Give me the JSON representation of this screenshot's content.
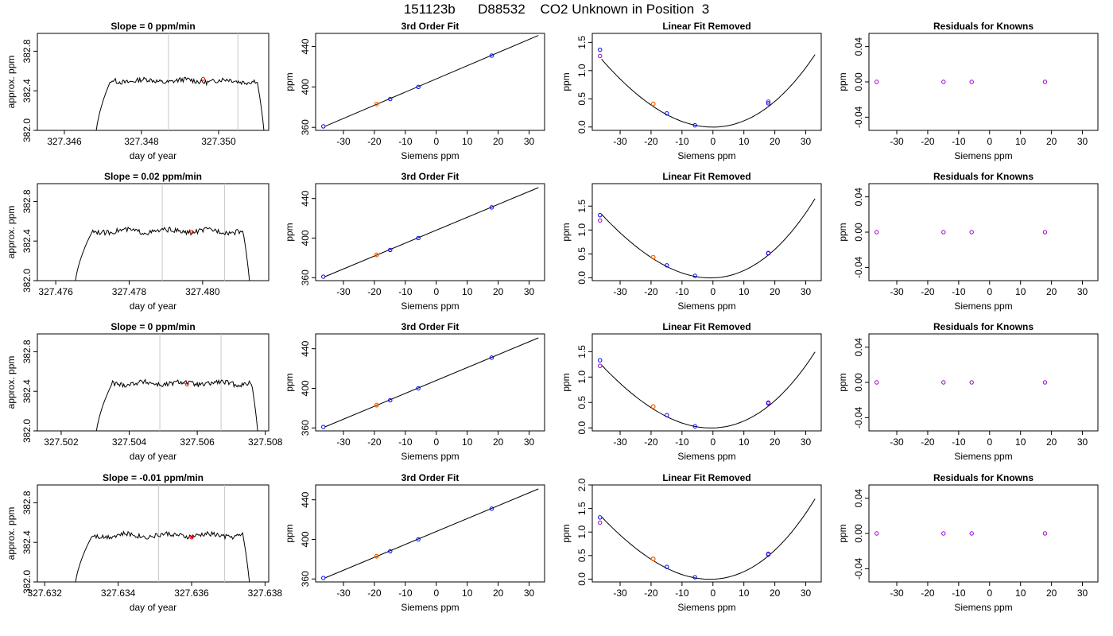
{
  "figure": {
    "title": "151123b      D88532    CO2 Unknown in Position  3",
    "colors": {
      "unknown": "#ff0000",
      "fit_point": "#ff6600",
      "known": "#0000ff",
      "known_alt": "#9900cc",
      "window_lines": "#c8c8c8"
    }
  },
  "chart_data": [
    {
      "row": 1,
      "col": 1,
      "type": "line",
      "title": "Slope =  0  ppm/min",
      "xlabel": "day of year",
      "ylabel": "approx. ppm",
      "xlim": [
        327.3453,
        327.3513
      ],
      "ylim": [
        382.0,
        382.98
      ],
      "xticks": [
        327.346,
        327.348,
        327.35
      ],
      "xtick_labels": [
        "327.346",
        "327.348",
        "327.350"
      ],
      "yticks": [
        382.0,
        382.4,
        382.8
      ],
      "ytick_labels": [
        "382.0",
        "382.4",
        "382.8"
      ],
      "trace": {
        "start": 327.3468,
        "end": 327.3512,
        "plateau": 382.5,
        "rise": 0.0004,
        "fall": 0.0002
      },
      "vlines": [
        327.3487,
        327.3505
      ],
      "point": {
        "x": 327.3496,
        "y": 382.52
      }
    },
    {
      "row": 1,
      "col": 2,
      "type": "line",
      "title": "3rd Order Fit",
      "xlabel": "Siemens ppm",
      "ylabel": "ppm",
      "xlim": [
        -39,
        35
      ],
      "ylim": [
        357,
        453
      ],
      "xticks": [
        -30,
        -20,
        -10,
        0,
        10,
        20,
        30
      ],
      "xtick_labels": [
        "-30",
        "-20",
        "-10",
        "0",
        "10",
        "20",
        "30"
      ],
      "yticks": [
        360,
        400,
        440
      ],
      "ytick_labels": [
        "360",
        "400",
        "440"
      ],
      "fit_line": {
        "x": [
          -36,
          33
        ],
        "y": [
          361,
          451
        ]
      },
      "known_points": [
        {
          "x": -36.5,
          "y": 361
        },
        {
          "x": -14.9,
          "y": 388
        },
        {
          "x": -5.8,
          "y": 400
        },
        {
          "x": 17.9,
          "y": 431
        }
      ],
      "unknown_point": {
        "x": -19.3,
        "y": 383
      }
    },
    {
      "row": 1,
      "col": 3,
      "type": "line",
      "title": "Linear Fit Removed",
      "xlabel": "Siemens ppm",
      "ylabel": "ppm",
      "xlim": [
        -39,
        35
      ],
      "ylim": [
        -0.06,
        1.66
      ],
      "xticks": [
        -30,
        -20,
        -10,
        0,
        10,
        20,
        30
      ],
      "xtick_labels": [
        "-30",
        "-20",
        "-10",
        "0",
        "10",
        "20",
        "30"
      ],
      "yticks": [
        0.0,
        0.5,
        1.0,
        1.5
      ],
      "ytick_labels": [
        "0.0",
        "0.5",
        "1.0",
        "1.5"
      ],
      "curve": {
        "x_range": [
          -36,
          33
        ],
        "coef": [
          -0.002,
          0.0002,
          0.00106,
          3.5e-06
        ]
      },
      "known_points": [
        {
          "x": -36.5,
          "y": 1.37
        },
        {
          "x": -14.9,
          "y": 0.24
        },
        {
          "x": -5.8,
          "y": 0.03
        },
        {
          "x": 17.9,
          "y": 0.42
        }
      ],
      "alt_points": [
        {
          "x": -36.5,
          "y": 1.26
        },
        {
          "x": 17.9,
          "y": 0.45
        }
      ],
      "unknown_point": {
        "x": -19.3,
        "y": 0.41
      }
    },
    {
      "row": 1,
      "col": 4,
      "type": "scatter",
      "title": "Residuals for Knowns",
      "xlabel": "Siemens ppm",
      "ylabel": "ppm",
      "xlim": [
        -39,
        35
      ],
      "ylim": [
        -0.055,
        0.055
      ],
      "xticks": [
        -30,
        -20,
        -10,
        0,
        10,
        20,
        30
      ],
      "xtick_labels": [
        "-30",
        "-20",
        "-10",
        "0",
        "10",
        "20",
        "30"
      ],
      "yticks": [
        -0.04,
        0.0,
        0.04
      ],
      "ytick_labels": [
        "-0.04",
        "0.00",
        "0.04"
      ],
      "alt_points": [
        {
          "x": -36.5,
          "y": 0
        },
        {
          "x": -14.9,
          "y": 0
        },
        {
          "x": -5.8,
          "y": 0
        },
        {
          "x": 17.9,
          "y": 0
        }
      ]
    },
    {
      "row": 2,
      "col": 1,
      "type": "line",
      "title": "Slope =  0.02  ppm/min",
      "xlabel": "day of year",
      "ylabel": "approx. ppm",
      "xlim": [
        327.4755,
        327.4818
      ],
      "ylim": [
        382.0,
        382.98
      ],
      "xticks": [
        327.476,
        327.478,
        327.48
      ],
      "xtick_labels": [
        "327.476",
        "327.478",
        "327.480"
      ],
      "trace": {
        "start": 327.4765,
        "end": 327.4813,
        "plateau": 382.5,
        "rise": 0.0005,
        "fall": 0.0002
      },
      "yticks": [
        382.0,
        382.4,
        382.8
      ],
      "ytick_labels": [
        "382.0",
        "382.4",
        "382.8"
      ],
      "vlines": [
        327.4789,
        327.4806
      ],
      "point": {
        "x": 327.4797,
        "y": 382.49
      }
    },
    {
      "row": 2,
      "col": 2,
      "type": "line",
      "title": "3rd Order Fit",
      "xlabel": "Siemens ppm",
      "ylabel": "ppm",
      "xlim": [
        -39,
        35
      ],
      "ylim": [
        357,
        455
      ],
      "xticks": [
        -30,
        -20,
        -10,
        0,
        10,
        20,
        30
      ],
      "xtick_labels": [
        "-30",
        "-20",
        "-10",
        "0",
        "10",
        "20",
        "30"
      ],
      "yticks": [
        360,
        400,
        440
      ],
      "ytick_labels": [
        "360",
        "400",
        "440"
      ],
      "fit_line": {
        "x": [
          -36,
          33
        ],
        "y": [
          361,
          451
        ]
      },
      "known_points": [
        {
          "x": -36.5,
          "y": 361
        },
        {
          "x": -14.9,
          "y": 388
        },
        {
          "x": -5.8,
          "y": 400
        },
        {
          "x": 17.9,
          "y": 431
        }
      ],
      "unknown_point": {
        "x": -19.3,
        "y": 383
      }
    },
    {
      "row": 2,
      "col": 3,
      "type": "line",
      "title": "Linear Fit Removed",
      "xlabel": "Siemens ppm",
      "ylabel": "ppm",
      "xlim": [
        -39,
        35
      ],
      "ylim": [
        -0.06,
        1.97
      ],
      "xticks": [
        -30,
        -20,
        -10,
        0,
        10,
        20,
        30
      ],
      "xtick_labels": [
        "-30",
        "-20",
        "-10",
        "0",
        "10",
        "20",
        "30"
      ],
      "yticks": [
        0.0,
        0.5,
        1.0,
        1.5
      ],
      "ytick_labels": [
        "0.0",
        "0.5",
        "1.0",
        "1.5"
      ],
      "curve": {
        "x_range": [
          -36,
          33
        ],
        "coef": [
          -0.002,
          0.002,
          0.00128,
          5.5e-06
        ]
      },
      "known_points": [
        {
          "x": -36.5,
          "y": 1.31
        },
        {
          "x": -14.9,
          "y": 0.26
        },
        {
          "x": -5.8,
          "y": 0.04
        },
        {
          "x": 17.9,
          "y": 0.51
        }
      ],
      "alt_points": [
        {
          "x": -36.5,
          "y": 1.2
        },
        {
          "x": 17.9,
          "y": 0.52
        }
      ],
      "unknown_point": {
        "x": -19.3,
        "y": 0.43
      }
    },
    {
      "row": 2,
      "col": 4,
      "type": "scatter",
      "title": "Residuals for Knowns",
      "xlabel": "Siemens ppm",
      "ylabel": "ppm",
      "xlim": [
        -39,
        35
      ],
      "ylim": [
        -0.055,
        0.055
      ],
      "xticks": [
        -30,
        -20,
        -10,
        0,
        10,
        20,
        30
      ],
      "xtick_labels": [
        "-30",
        "-20",
        "-10",
        "0",
        "10",
        "20",
        "30"
      ],
      "yticks": [
        -0.04,
        0.0,
        0.04
      ],
      "ytick_labels": [
        "-0.04",
        "0.00",
        "0.04"
      ],
      "alt_points": [
        {
          "x": -36.5,
          "y": 0
        },
        {
          "x": -14.9,
          "y": 0
        },
        {
          "x": -5.8,
          "y": 0
        },
        {
          "x": 17.9,
          "y": 0
        }
      ]
    },
    {
      "row": 3,
      "col": 1,
      "type": "line",
      "title": "Slope =  0  ppm/min",
      "xlabel": "day of year",
      "ylabel": "approx. ppm",
      "xlim": [
        327.5013,
        327.5081
      ],
      "ylim": [
        382.0,
        382.98
      ],
      "xticks": [
        327.502,
        327.504,
        327.506,
        327.508
      ],
      "xtick_labels": [
        "327.502",
        "327.504",
        "327.506",
        "327.508"
      ],
      "yticks": [
        382.0,
        382.4,
        382.8
      ],
      "ytick_labels": [
        "382.0",
        "382.4",
        "382.8"
      ],
      "trace": {
        "start": 327.503,
        "end": 327.5078,
        "plateau": 382.48,
        "rise": 0.0005,
        "fall": 0.0002
      },
      "vlines": [
        327.5049,
        327.5067
      ],
      "point": {
        "x": 327.5057,
        "y": 382.47
      }
    },
    {
      "row": 3,
      "col": 2,
      "type": "line",
      "title": "3rd Order Fit",
      "xlabel": "Siemens ppm",
      "ylabel": "ppm",
      "xlim": [
        -39,
        35
      ],
      "ylim": [
        357,
        455
      ],
      "xticks": [
        -30,
        -20,
        -10,
        0,
        10,
        20,
        30
      ],
      "xtick_labels": [
        "-30",
        "-20",
        "-10",
        "0",
        "10",
        "20",
        "30"
      ],
      "yticks": [
        360,
        400,
        440
      ],
      "ytick_labels": [
        "360",
        "400",
        "440"
      ],
      "fit_line": {
        "x": [
          -36,
          33
        ],
        "y": [
          361,
          451
        ]
      },
      "known_points": [
        {
          "x": -36.5,
          "y": 361
        },
        {
          "x": -14.9,
          "y": 388
        },
        {
          "x": -5.8,
          "y": 400
        },
        {
          "x": 17.9,
          "y": 431
        }
      ],
      "unknown_point": {
        "x": -19.3,
        "y": 383
      }
    },
    {
      "row": 3,
      "col": 3,
      "type": "line",
      "title": "Linear Fit Removed",
      "xlabel": "Siemens ppm",
      "ylabel": "ppm",
      "xlim": [
        -39,
        35
      ],
      "ylim": [
        -0.06,
        1.85
      ],
      "xticks": [
        -30,
        -20,
        -10,
        0,
        10,
        20,
        30
      ],
      "xtick_labels": [
        "-30",
        "-20",
        "-10",
        "0",
        "10",
        "20",
        "30"
      ],
      "yticks": [
        0.0,
        0.5,
        1.0,
        1.5
      ],
      "ytick_labels": [
        "0.0",
        "0.5",
        "1.0",
        "1.5"
      ],
      "curve": {
        "x_range": [
          -36,
          33
        ],
        "coef": [
          -0.002,
          0.0015,
          0.00117,
          4.8e-06
        ]
      },
      "known_points": [
        {
          "x": -36.5,
          "y": 1.33
        },
        {
          "x": -14.9,
          "y": 0.25
        },
        {
          "x": -5.8,
          "y": 0.03
        },
        {
          "x": 17.9,
          "y": 0.48
        }
      ],
      "alt_points": [
        {
          "x": -36.5,
          "y": 1.22
        },
        {
          "x": 17.9,
          "y": 0.5
        }
      ],
      "unknown_point": {
        "x": -19.3,
        "y": 0.42
      }
    },
    {
      "row": 3,
      "col": 4,
      "type": "scatter",
      "title": "Residuals for Knowns",
      "xlabel": "Siemens ppm",
      "ylabel": "ppm",
      "xlim": [
        -39,
        35
      ],
      "ylim": [
        -0.055,
        0.055
      ],
      "xticks": [
        -30,
        -20,
        -10,
        0,
        10,
        20,
        30
      ],
      "xtick_labels": [
        "-30",
        "-20",
        "-10",
        "0",
        "10",
        "20",
        "30"
      ],
      "yticks": [
        -0.04,
        0.0,
        0.04
      ],
      "ytick_labels": [
        "-0.04",
        "0.00",
        "0.04"
      ],
      "alt_points": [
        {
          "x": -36.5,
          "y": 0
        },
        {
          "x": -14.9,
          "y": 0
        },
        {
          "x": -5.8,
          "y": 0
        },
        {
          "x": 17.9,
          "y": 0
        }
      ]
    },
    {
      "row": 4,
      "col": 1,
      "type": "line",
      "title": "Slope =  -0.01  ppm/min",
      "xlabel": "day of year",
      "ylabel": "approx. ppm",
      "xlim": [
        327.6318,
        327.6381
      ],
      "ylim": [
        382.0,
        382.98
      ],
      "xticks": [
        327.632,
        327.634,
        327.636,
        327.638
      ],
      "xtick_labels": [
        "327.632",
        "327.634",
        "327.636",
        "327.638"
      ],
      "yticks": [
        382.0,
        382.4,
        382.8
      ],
      "ytick_labels": [
        "382.0",
        "382.4",
        "382.8"
      ],
      "trace": {
        "start": 327.6328,
        "end": 327.6376,
        "plateau": 382.47,
        "rise": 0.0005,
        "fall": 0.0002
      },
      "vlines": [
        327.6351,
        327.6369
      ],
      "point": {
        "x": 327.636,
        "y": 382.45
      }
    },
    {
      "row": 4,
      "col": 2,
      "type": "line",
      "title": "3rd Order Fit",
      "xlabel": "Siemens ppm",
      "ylabel": "ppm",
      "xlim": [
        -39,
        35
      ],
      "ylim": [
        357,
        455
      ],
      "xticks": [
        -30,
        -20,
        -10,
        0,
        10,
        20,
        30
      ],
      "xtick_labels": [
        "-30",
        "-20",
        "-10",
        "0",
        "10",
        "20",
        "30"
      ],
      "yticks": [
        360,
        400,
        440
      ],
      "ytick_labels": [
        "360",
        "400",
        "440"
      ],
      "fit_line": {
        "x": [
          -36,
          33
        ],
        "y": [
          361,
          451
        ]
      },
      "known_points": [
        {
          "x": -36.5,
          "y": 361
        },
        {
          "x": -14.9,
          "y": 388
        },
        {
          "x": -5.8,
          "y": 400
        },
        {
          "x": 17.9,
          "y": 431
        }
      ],
      "unknown_point": {
        "x": -19.3,
        "y": 383
      }
    },
    {
      "row": 4,
      "col": 3,
      "type": "line",
      "title": "Linear Fit Removed",
      "xlabel": "Siemens ppm",
      "ylabel": "ppm",
      "xlim": [
        -39,
        35
      ],
      "ylim": [
        -0.06,
        2.0
      ],
      "xticks": [
        -30,
        -20,
        -10,
        0,
        10,
        20,
        30
      ],
      "xtick_labels": [
        "-30",
        "-20",
        "-10",
        "0",
        "10",
        "20",
        "30"
      ],
      "yticks": [
        0.0,
        0.5,
        1.0,
        1.5,
        2.0
      ],
      "ytick_labels": [
        "0.0",
        "0.5",
        "1.0",
        "1.5",
        "2.0"
      ],
      "curve": {
        "x_range": [
          -36,
          33
        ],
        "coef": [
          -0.002,
          0.0025,
          0.0013,
          5.8e-06
        ]
      },
      "known_points": [
        {
          "x": -36.5,
          "y": 1.31
        },
        {
          "x": -14.9,
          "y": 0.26
        },
        {
          "x": -5.8,
          "y": 0.04
        },
        {
          "x": 17.9,
          "y": 0.52
        }
      ],
      "alt_points": [
        {
          "x": -36.5,
          "y": 1.2
        },
        {
          "x": 17.9,
          "y": 0.54
        }
      ],
      "unknown_point": {
        "x": -19.3,
        "y": 0.43
      }
    },
    {
      "row": 4,
      "col": 4,
      "type": "scatter",
      "title": "Residuals for Knowns",
      "xlabel": "Siemens ppm",
      "ylabel": "ppm",
      "xlim": [
        -39,
        35
      ],
      "ylim": [
        -0.055,
        0.055
      ],
      "xticks": [
        -30,
        -20,
        -10,
        0,
        10,
        20,
        30
      ],
      "xtick_labels": [
        "-30",
        "-20",
        "-10",
        "0",
        "10",
        "20",
        "30"
      ],
      "yticks": [
        -0.04,
        0.0,
        0.04
      ],
      "ytick_labels": [
        "-0.04",
        "0.00",
        "0.04"
      ],
      "alt_points": [
        {
          "x": -36.5,
          "y": 0
        },
        {
          "x": -14.9,
          "y": 0
        },
        {
          "x": -5.8,
          "y": 0
        },
        {
          "x": 17.9,
          "y": 0
        }
      ]
    }
  ]
}
